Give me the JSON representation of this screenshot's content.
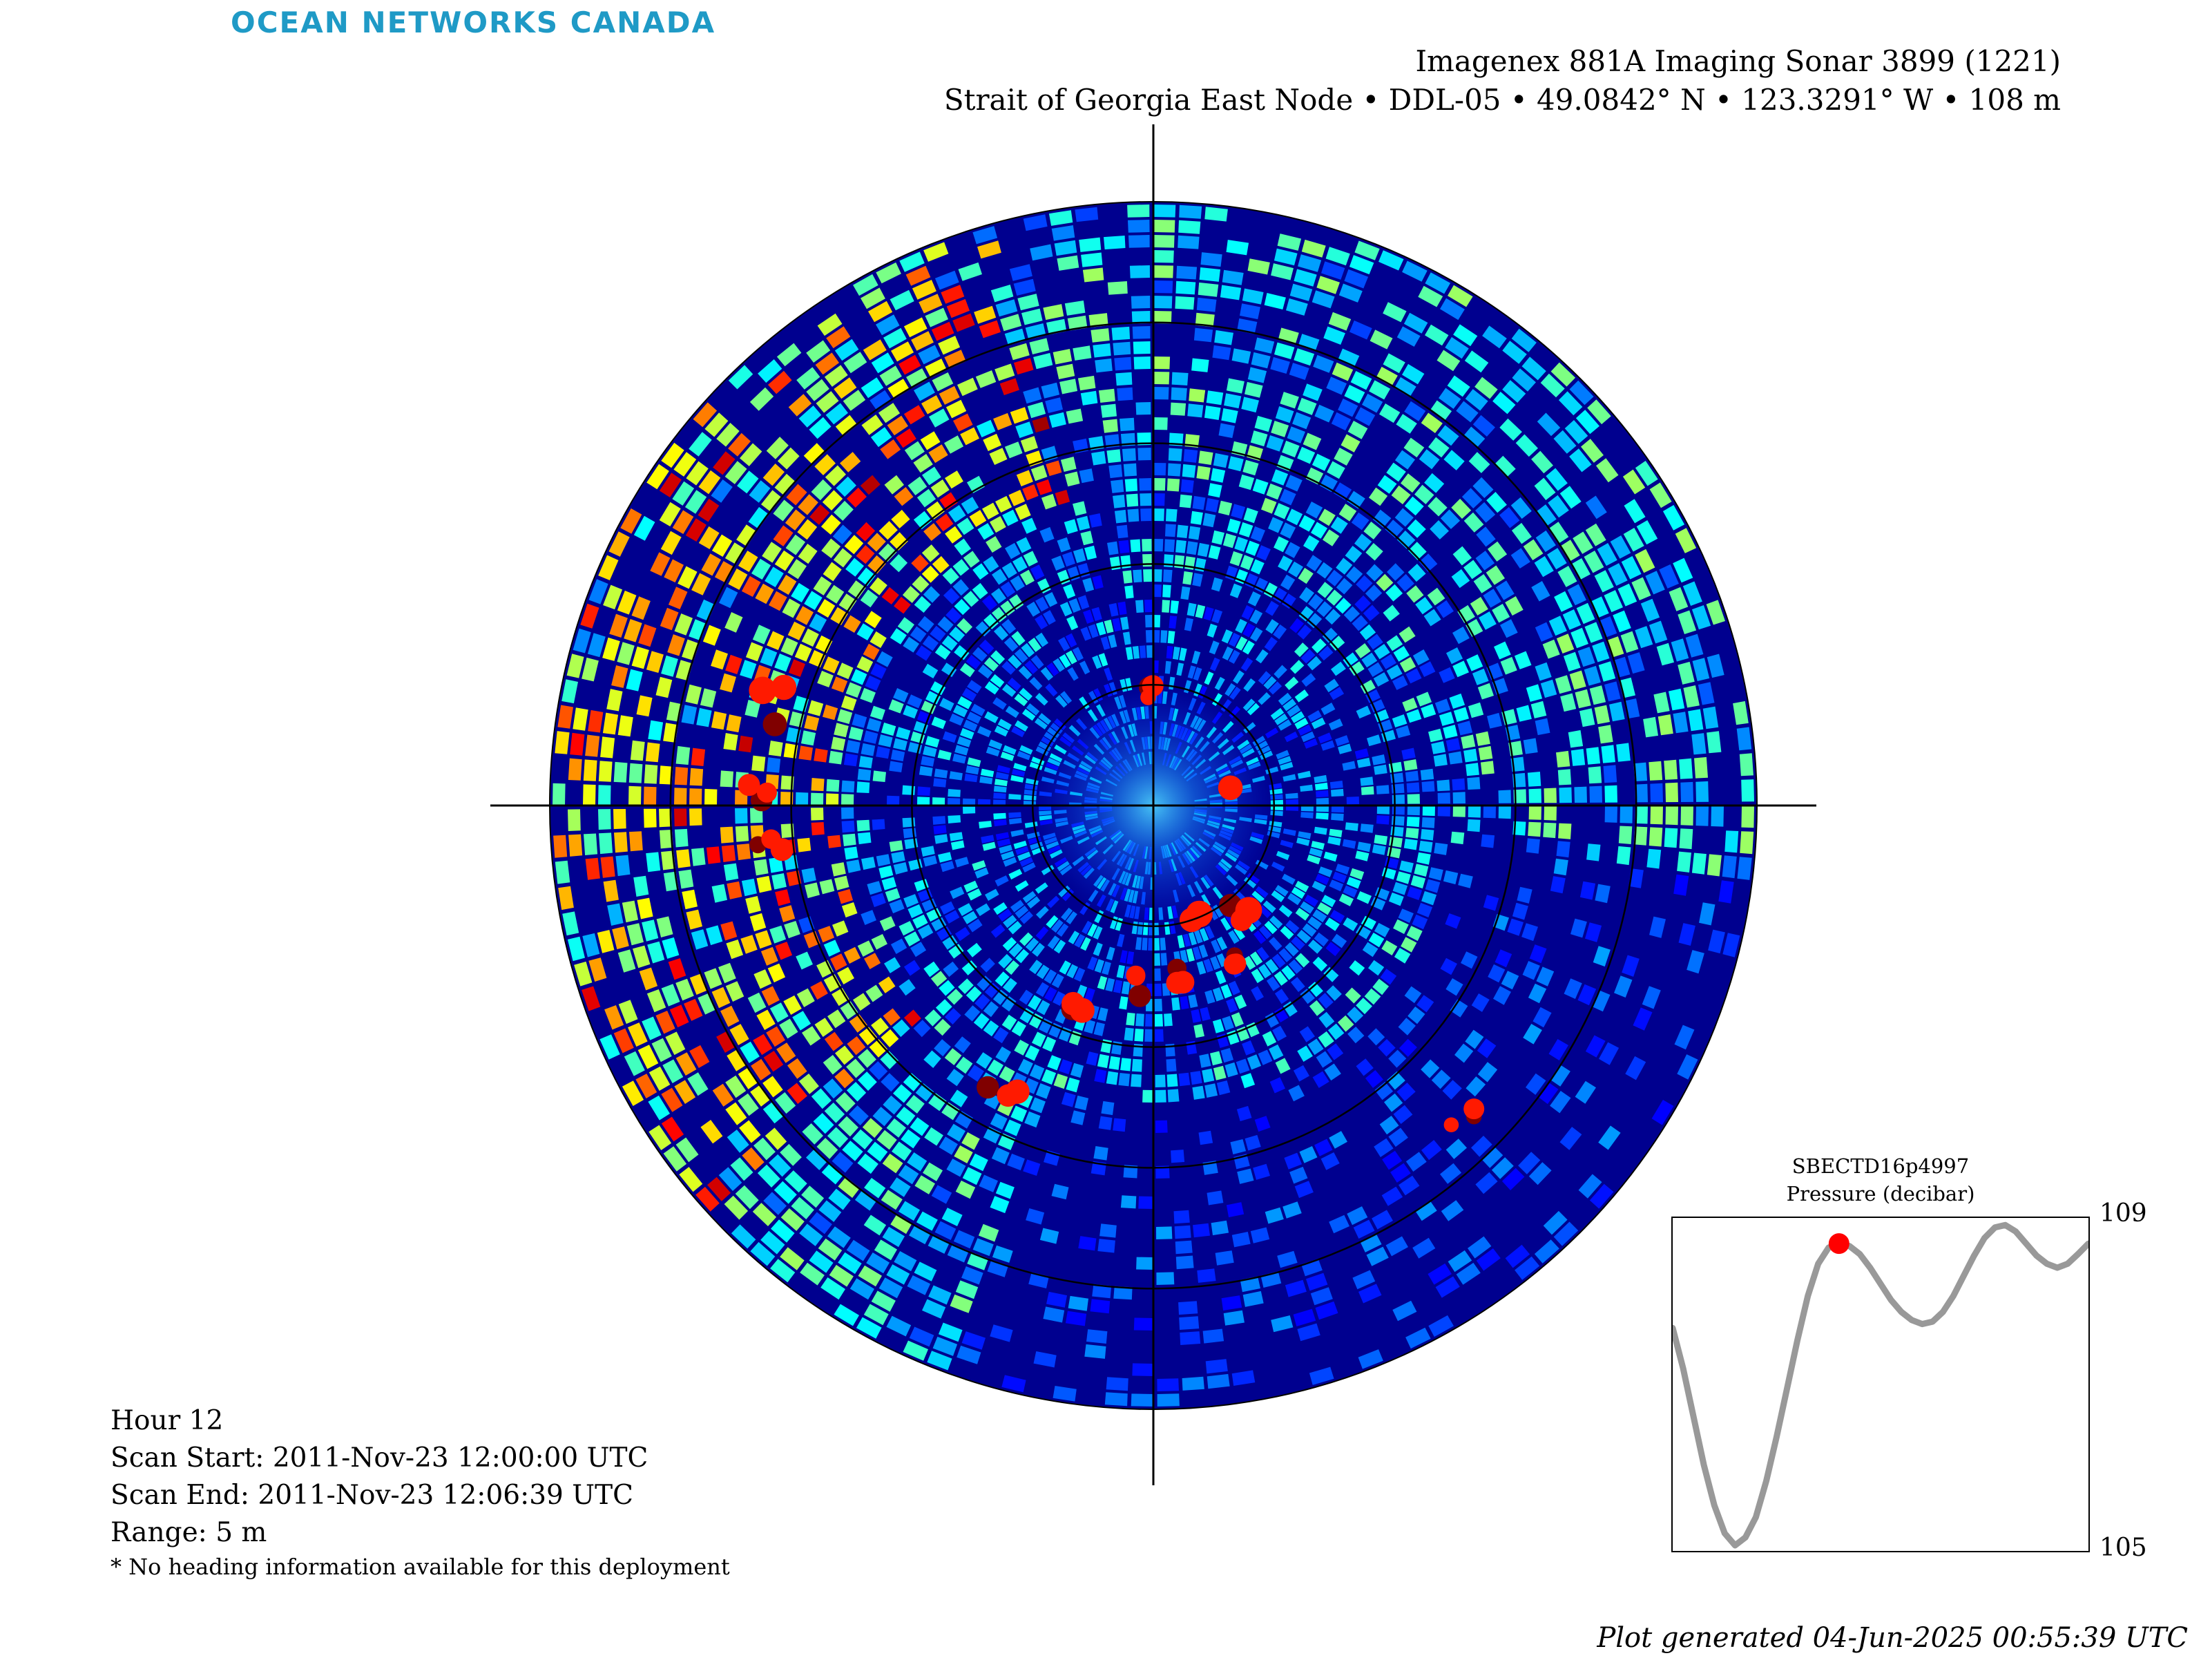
{
  "header": {
    "logo": "OCEAN NETWORKS CANADA",
    "title": "Imagenex 881A Imaging Sonar 3899 (1221)",
    "subtitle": "Strait of Georgia East Node • DDL-05 • 49.0842° N • 123.3291° W • 108 m"
  },
  "info": {
    "hour": "Hour 12",
    "scan_start": "Scan Start: 2011-Nov-23 12:00:00 UTC",
    "scan_end": "Scan End: 2011-Nov-23 12:06:39 UTC",
    "range": "Range: 5 m",
    "note": "* No heading information available for this deployment"
  },
  "footer": {
    "generated": "Plot generated 04-Jun-2025 00:55:39 UTC"
  },
  "colors": {
    "background_echo": "#00008f",
    "colormap": "jet",
    "strong_echo": "#800000",
    "pressure_line": "#999999",
    "current_marker": "#ff0000"
  },
  "chart_data": [
    {
      "type": "heatmap",
      "projection": "polar",
      "description_label": "Imaging sonar backscatter intensity",
      "range_max_m": 5,
      "range_rings_m": [
        1,
        2,
        3,
        4,
        5
      ],
      "colormap": "jet",
      "strong_echo_patches": [
        {
          "bearing_deg": 0,
          "range_m": 0.9
        },
        {
          "bearing_deg": 75,
          "range_m": 0.65
        },
        {
          "bearing_deg": 140,
          "range_m": 1.1
        },
        {
          "bearing_deg": 150,
          "range_m": 1.5
        },
        {
          "bearing_deg": 160,
          "range_m": 1.0
        },
        {
          "bearing_deg": 172,
          "range_m": 1.4
        },
        {
          "bearing_deg": 185,
          "range_m": 1.5
        },
        {
          "bearing_deg": 200,
          "range_m": 1.7
        },
        {
          "bearing_deg": 208,
          "range_m": 2.6
        },
        {
          "bearing_deg": 262,
          "range_m": 3.2
        },
        {
          "bearing_deg": 272,
          "range_m": 3.3
        },
        {
          "bearing_deg": 285,
          "range_m": 3.3
        },
        {
          "bearing_deg": 135,
          "range_m": 3.6
        }
      ]
    },
    {
      "type": "line",
      "title": "SBECTD16p4997",
      "ylabel": "Pressure (decibar)",
      "ylim": [
        105,
        109
      ],
      "yticks": [
        105,
        109
      ],
      "x": [
        0.0,
        0.025,
        0.05,
        0.075,
        0.1,
        0.125,
        0.15,
        0.175,
        0.2,
        0.225,
        0.25,
        0.275,
        0.3,
        0.325,
        0.35,
        0.375,
        0.4,
        0.425,
        0.45,
        0.475,
        0.5,
        0.525,
        0.55,
        0.575,
        0.6,
        0.625,
        0.65,
        0.675,
        0.7,
        0.725,
        0.75,
        0.775,
        0.8,
        0.825,
        0.85,
        0.875,
        0.9,
        0.925,
        0.95,
        0.975,
        1.0
      ],
      "series": [
        {
          "values": [
            107.7,
            107.2,
            106.6,
            106.0,
            105.5,
            105.15,
            105.0,
            105.1,
            105.35,
            105.8,
            106.35,
            106.95,
            107.55,
            108.1,
            108.5,
            108.7,
            108.75,
            108.72,
            108.62,
            108.45,
            108.25,
            108.05,
            107.9,
            107.8,
            107.75,
            107.78,
            107.9,
            108.1,
            108.35,
            108.6,
            108.82,
            108.95,
            108.98,
            108.9,
            108.75,
            108.6,
            108.5,
            108.45,
            108.5,
            108.62,
            108.75
          ]
        }
      ],
      "current_index": 16
    }
  ]
}
